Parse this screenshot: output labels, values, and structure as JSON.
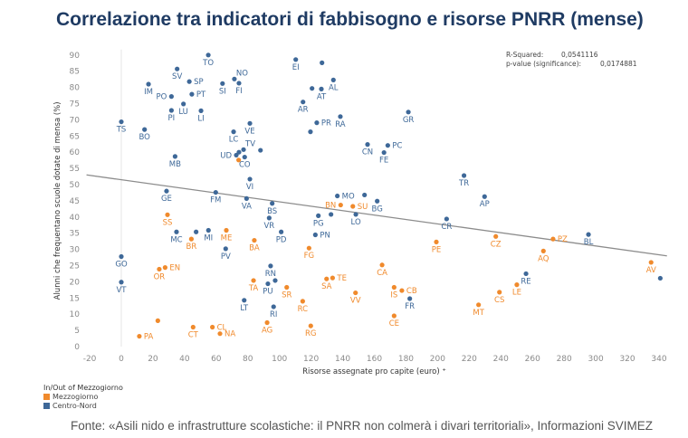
{
  "title": "Correlazione tra indicatori di fabbisogno e risorse PNRR (mense)",
  "stats": {
    "r_squared_label": "R-Squared:",
    "r_squared_value": "0,0541116",
    "p_value_label": "p-value (significance):",
    "p_value_value": "0,0174881"
  },
  "legend": {
    "title": "In/Out of Mezzogiorno",
    "items": [
      {
        "label": "Mezzogiorno",
        "color": "#f08a2c"
      },
      {
        "label": "Centro-Nord",
        "color": "#3e6898"
      }
    ]
  },
  "source": "Fonte: «Asili nido e infrastrutture scolastiche: il PNRR non colmerà i divari territoriali», Informazioni SVIMEZ",
  "chart_data": {
    "type": "scatter",
    "title": "Correlazione tra indicatori di fabbisogno e risorse PNRR (mense)",
    "xlabel": "Risorse assegnate pro capite (euro) ⁺",
    "ylabel": "Alunni che frequentano scuole dotate di mensa (%)",
    "xlim": [
      -20,
      340
    ],
    "ylim": [
      0,
      90
    ],
    "xticks": [
      "-20",
      "0",
      "20",
      "40",
      "60",
      "80",
      "100",
      "120",
      "140",
      "160",
      "180",
      "200",
      "220",
      "240",
      "260",
      "280",
      "300",
      "320",
      "340"
    ],
    "yticks": [
      "0",
      "5",
      "10",
      "15",
      "20",
      "25",
      "30",
      "35",
      "40",
      "45",
      "50",
      "55",
      "60",
      "65",
      "70",
      "75",
      "80",
      "85",
      "90"
    ],
    "grid": false,
    "legend_position": "bottom-left",
    "trendline": {
      "from": [
        -22,
        53
      ],
      "to": [
        345,
        28
      ],
      "color": "#8c8c8c"
    },
    "series": [
      {
        "name": "Centro-Nord",
        "color": "#3e6898",
        "points": [
          {
            "label": "TO",
            "x": 55,
            "y": 90,
            "pos": "below"
          },
          {
            "label": "SV",
            "x": 35.3,
            "y": 85.7,
            "pos": "below"
          },
          {
            "label": "SP",
            "x": 43,
            "y": 81.8,
            "pos": "right"
          },
          {
            "label": "IM",
            "x": 17.2,
            "y": 81,
            "pos": "below"
          },
          {
            "label": "PO",
            "x": 31.7,
            "y": 77.2,
            "pos": "left"
          },
          {
            "label": "PT",
            "x": 44.6,
            "y": 77.9,
            "pos": "right"
          },
          {
            "label": "SI",
            "x": 64,
            "y": 81.2,
            "pos": "below"
          },
          {
            "label": "NO",
            "x": 71.5,
            "y": 82.6,
            "pos": "above-right"
          },
          {
            "label": "FI",
            "x": 74.4,
            "y": 81.3,
            "pos": "below"
          },
          {
            "label": "LU",
            "x": 39.3,
            "y": 74.9,
            "pos": "below"
          },
          {
            "label": "PI",
            "x": 31.7,
            "y": 72.9,
            "pos": "below"
          },
          {
            "label": "LI",
            "x": 50.4,
            "y": 72.8,
            "pos": "below"
          },
          {
            "label": "TS",
            "x": 0,
            "y": 69.4,
            "pos": "below"
          },
          {
            "label": "BO",
            "x": 14.7,
            "y": 67,
            "pos": "below"
          },
          {
            "label": "LC",
            "x": 71,
            "y": 66.3,
            "pos": "below"
          },
          {
            "label": "VE",
            "x": 81.3,
            "y": 68.9,
            "pos": "below"
          },
          {
            "label": "TV",
            "x": 77.3,
            "y": 60.8,
            "pos": "above-right"
          },
          {
            "label": "",
            "x": 74.4,
            "y": 60,
            "pos": "none"
          },
          {
            "label": "UD",
            "x": 72.7,
            "y": 59.1,
            "pos": "left"
          },
          {
            "label": "",
            "x": 88,
            "y": 60.6,
            "pos": "none"
          },
          {
            "label": "CO",
            "x": 78,
            "y": 58.5,
            "pos": "below"
          },
          {
            "label": "MB",
            "x": 34,
            "y": 58.7,
            "pos": "below"
          },
          {
            "label": "VI",
            "x": 81.3,
            "y": 51.7,
            "pos": "below"
          },
          {
            "label": "EI",
            "x": 110.3,
            "y": 88.6,
            "pos": "below"
          },
          {
            "label": "",
            "x": 126.9,
            "y": 87.6,
            "pos": "none"
          },
          {
            "label": "AL",
            "x": 134.1,
            "y": 82.3,
            "pos": "below"
          },
          {
            "label": "",
            "x": 120.6,
            "y": 79.7,
            "pos": "none"
          },
          {
            "label": "AT",
            "x": 126.5,
            "y": 79.5,
            "pos": "below"
          },
          {
            "label": "AR",
            "x": 114.9,
            "y": 75.5,
            "pos": "below"
          },
          {
            "label": "RA",
            "x": 138.5,
            "y": 71,
            "pos": "below"
          },
          {
            "label": "PR",
            "x": 123.6,
            "y": 69.1,
            "pos": "right"
          },
          {
            "label": "",
            "x": 119.6,
            "y": 66.3,
            "pos": "none"
          },
          {
            "label": "GR",
            "x": 181.5,
            "y": 72.4,
            "pos": "below"
          },
          {
            "label": "CN",
            "x": 155.7,
            "y": 62.4,
            "pos": "below"
          },
          {
            "label": "PC",
            "x": 168.5,
            "y": 62.1,
            "pos": "right"
          },
          {
            "label": "FE",
            "x": 166.1,
            "y": 59.9,
            "pos": "below"
          },
          {
            "label": "TR",
            "x": 216.7,
            "y": 52.8,
            "pos": "below"
          },
          {
            "label": "GE",
            "x": 28.6,
            "y": 48,
            "pos": "below"
          },
          {
            "label": "FM",
            "x": 59.7,
            "y": 47.6,
            "pos": "below"
          },
          {
            "label": "VA",
            "x": 79.2,
            "y": 45.7,
            "pos": "below"
          },
          {
            "label": "BS",
            "x": 95.4,
            "y": 44.2,
            "pos": "below"
          },
          {
            "label": "VR",
            "x": 93.5,
            "y": 39.7,
            "pos": "below"
          },
          {
            "label": "MC",
            "x": 34.9,
            "y": 35.4,
            "pos": "below"
          },
          {
            "label": "",
            "x": 47.3,
            "y": 35.4,
            "pos": "none"
          },
          {
            "label": "MI",
            "x": 55.1,
            "y": 35.9,
            "pos": "below"
          },
          {
            "label": "PD",
            "x": 101.1,
            "y": 35.4,
            "pos": "below"
          },
          {
            "label": "PV",
            "x": 66,
            "y": 30.2,
            "pos": "below"
          },
          {
            "label": "GO",
            "x": 0,
            "y": 27.8,
            "pos": "below"
          },
          {
            "label": "VT",
            "x": 0,
            "y": 19.9,
            "pos": "below"
          },
          {
            "label": "RN",
            "x": 94.4,
            "y": 24.9,
            "pos": "below"
          },
          {
            "label": "PU",
            "x": 92.7,
            "y": 19.4,
            "pos": "below"
          },
          {
            "label": "",
            "x": 97.3,
            "y": 20.4,
            "pos": "none"
          },
          {
            "label": "MO",
            "x": 136.6,
            "y": 46.5,
            "pos": "right"
          },
          {
            "label": "",
            "x": 153.8,
            "y": 46.8,
            "pos": "none"
          },
          {
            "label": "BG",
            "x": 161.8,
            "y": 44.9,
            "pos": "below"
          },
          {
            "label": "PG",
            "x": 124.6,
            "y": 40.4,
            "pos": "below"
          },
          {
            "label": "",
            "x": 132.6,
            "y": 40.8,
            "pos": "none"
          },
          {
            "label": "LO",
            "x": 148.3,
            "y": 40.8,
            "pos": "below"
          },
          {
            "label": "PN",
            "x": 122.7,
            "y": 34.5,
            "pos": "right"
          },
          {
            "label": "CR",
            "x": 205.7,
            "y": 39.4,
            "pos": "below"
          },
          {
            "label": "AP",
            "x": 229.7,
            "y": 46.3,
            "pos": "below"
          },
          {
            "label": "BL",
            "x": 295.4,
            "y": 34.6,
            "pos": "below"
          },
          {
            "label": "",
            "x": 340.8,
            "y": 21.1,
            "pos": "none"
          },
          {
            "label": "RE",
            "x": 255.9,
            "y": 22.5,
            "pos": "below"
          },
          {
            "label": "LT",
            "x": 77.7,
            "y": 14.3,
            "pos": "below"
          },
          {
            "label": "RI",
            "x": 96.3,
            "y": 12.3,
            "pos": "below"
          },
          {
            "label": "FR",
            "x": 182.4,
            "y": 14.8,
            "pos": "below"
          }
        ]
      },
      {
        "name": "Mezzogiorno",
        "color": "#f08a2c",
        "points": [
          {
            "label": "",
            "x": 74.2,
            "y": 57.6,
            "pos": "none"
          },
          {
            "label": "SS",
            "x": 29.2,
            "y": 40.7,
            "pos": "below"
          },
          {
            "label": "ME",
            "x": 66.4,
            "y": 35.9,
            "pos": "below"
          },
          {
            "label": "BR",
            "x": 44.3,
            "y": 33.2,
            "pos": "below"
          },
          {
            "label": "BA",
            "x": 84.1,
            "y": 32.8,
            "pos": "below"
          },
          {
            "label": "OR",
            "x": 24,
            "y": 23.9,
            "pos": "below"
          },
          {
            "label": "EN",
            "x": 27.7,
            "y": 24.4,
            "pos": "right"
          },
          {
            "label": "TA",
            "x": 83.6,
            "y": 20.4,
            "pos": "below"
          },
          {
            "label": "SR",
            "x": 104.6,
            "y": 18.3,
            "pos": "below"
          },
          {
            "label": "BN",
            "x": 138.7,
            "y": 43.7,
            "pos": "left"
          },
          {
            "label": "SU",
            "x": 146.4,
            "y": 43.3,
            "pos": "right"
          },
          {
            "label": "FG",
            "x": 118.7,
            "y": 30.4,
            "pos": "below"
          },
          {
            "label": "PE",
            "x": 199.2,
            "y": 32.3,
            "pos": "below"
          },
          {
            "label": "CA",
            "x": 164.9,
            "y": 25.2,
            "pos": "below"
          },
          {
            "label": "SA",
            "x": 129.8,
            "y": 20.9,
            "pos": "below"
          },
          {
            "label": "TE",
            "x": 133.6,
            "y": 21.2,
            "pos": "right"
          },
          {
            "label": "IS",
            "x": 172.5,
            "y": 18.3,
            "pos": "below"
          },
          {
            "label": "CB",
            "x": 177.4,
            "y": 17.3,
            "pos": "right"
          },
          {
            "label": "VV",
            "x": 148.1,
            "y": 16.6,
            "pos": "below"
          },
          {
            "label": "CZ",
            "x": 236.8,
            "y": 34,
            "pos": "below"
          },
          {
            "label": "PZ",
            "x": 273,
            "y": 33.2,
            "pos": "right"
          },
          {
            "label": "AQ",
            "x": 266.9,
            "y": 29.5,
            "pos": "below"
          },
          {
            "label": "AV",
            "x": 335,
            "y": 26,
            "pos": "below"
          },
          {
            "label": "LE",
            "x": 250.1,
            "y": 19.1,
            "pos": "below"
          },
          {
            "label": "CS",
            "x": 239.1,
            "y": 16.8,
            "pos": "below"
          },
          {
            "label": "AG",
            "x": 92.2,
            "y": 7.4,
            "pos": "below"
          },
          {
            "label": "",
            "x": 23.1,
            "y": 8,
            "pos": "none"
          },
          {
            "label": "PA",
            "x": 11.4,
            "y": 3.2,
            "pos": "right"
          },
          {
            "label": "CT",
            "x": 45.4,
            "y": 6,
            "pos": "below"
          },
          {
            "label": "CL",
            "x": 57.6,
            "y": 6,
            "pos": "right"
          },
          {
            "label": "NA",
            "x": 62.4,
            "y": 4,
            "pos": "right"
          },
          {
            "label": "RC",
            "x": 114.7,
            "y": 14,
            "pos": "below"
          },
          {
            "label": "RG",
            "x": 119.8,
            "y": 6.4,
            "pos": "below"
          },
          {
            "label": "CE",
            "x": 172.5,
            "y": 9.5,
            "pos": "below"
          },
          {
            "label": "MT",
            "x": 225.9,
            "y": 12.9,
            "pos": "below"
          }
        ]
      }
    ]
  }
}
